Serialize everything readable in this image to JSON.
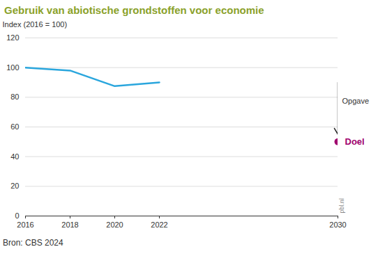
{
  "chart_data": {
    "type": "line",
    "title": "Gebruik van abiotische grondstoffen voor economie",
    "y_label": "Index (2016 = 100)",
    "x": [
      2016,
      2018,
      2020,
      2022
    ],
    "values": [
      100,
      98,
      87.5,
      90
    ],
    "color": "#2aa6dd",
    "xlim": [
      2016,
      2030
    ],
    "xticks": [
      2016,
      2018,
      2020,
      2022,
      2030
    ],
    "ylim": [
      0,
      120
    ],
    "yticks": [
      0,
      20,
      40,
      60,
      80,
      100,
      120
    ],
    "grid": true,
    "goal": {
      "name": "Doel",
      "x": 2030,
      "value": 50,
      "color": "#a0006e"
    },
    "annotation": {
      "text": "Opgave",
      "x": 2030,
      "from": 90,
      "to": 55
    },
    "credit": "pbl.nl",
    "source": "Bron: CBS 2024"
  }
}
